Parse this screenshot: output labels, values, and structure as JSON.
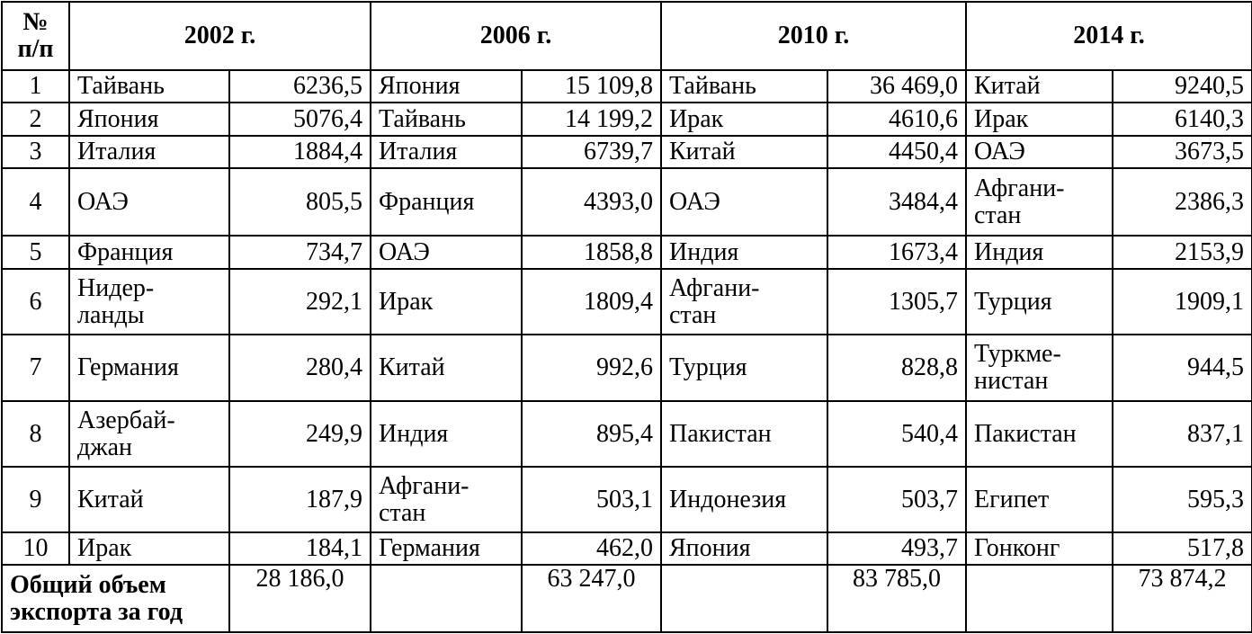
{
  "header": {
    "num": "№\nп/п",
    "years": [
      "2002 г.",
      "2006 г.",
      "2010 г.",
      "2014 г."
    ]
  },
  "rows": [
    {
      "num": "1",
      "cells": [
        [
          "Тайвань",
          "6236,5"
        ],
        [
          "Япония",
          "15 109,8"
        ],
        [
          "Тайвань",
          "36 469,0"
        ],
        [
          "Китай",
          "9240,5"
        ]
      ]
    },
    {
      "num": "2",
      "cells": [
        [
          "Япония",
          "5076,4"
        ],
        [
          "Тайвань",
          "14 199,2"
        ],
        [
          "Ирак",
          "4610,6"
        ],
        [
          "Ирак",
          "6140,3"
        ]
      ]
    },
    {
      "num": "3",
      "cells": [
        [
          "Италия",
          "1884,4"
        ],
        [
          "Италия",
          "6739,7"
        ],
        [
          "Китай",
          "4450,4"
        ],
        [
          "ОАЭ",
          "3673,5"
        ]
      ]
    },
    {
      "num": "4",
      "cells": [
        [
          "ОАЭ",
          "805,5"
        ],
        [
          "Франция",
          "4393,0"
        ],
        [
          "ОАЭ",
          "3484,4"
        ],
        [
          "Афгани-\nстан",
          "2386,3"
        ]
      ]
    },
    {
      "num": "5",
      "cells": [
        [
          "Франция",
          "734,7"
        ],
        [
          "ОАЭ",
          "1858,8"
        ],
        [
          "Индия",
          "1673,4"
        ],
        [
          "Индия",
          "2153,9"
        ]
      ]
    },
    {
      "num": "6",
      "cells": [
        [
          "Нидер-\nланды",
          "292,1"
        ],
        [
          "Ирак",
          "1809,4"
        ],
        [
          "Афгани-\nстан",
          "1305,7"
        ],
        [
          "Турция",
          "1909,1"
        ]
      ]
    },
    {
      "num": "7",
      "cells": [
        [
          "Германия",
          "280,4"
        ],
        [
          "Китай",
          "992,6"
        ],
        [
          "Турция",
          "828,8"
        ],
        [
          "Туркме-\nнистан",
          "944,5"
        ]
      ]
    },
    {
      "num": "8",
      "cells": [
        [
          "Азербай-\nджан",
          "249,9"
        ],
        [
          "Индия",
          "895,4"
        ],
        [
          "Пакистан",
          "540,4"
        ],
        [
          "Пакистан",
          "837,1"
        ]
      ]
    },
    {
      "num": "9",
      "cells": [
        [
          "Китай",
          "187,9"
        ],
        [
          "Афгани-\nстан",
          "503,1"
        ],
        [
          "Индонезия",
          "503,7"
        ],
        [
          "Египет",
          "595,3"
        ]
      ]
    },
    {
      "num": "10",
      "cells": [
        [
          "Ирак",
          "184,1"
        ],
        [
          "Германия",
          "462,0"
        ],
        [
          "Япония",
          "493,7"
        ],
        [
          "Гонконг",
          "517,8"
        ]
      ]
    }
  ],
  "total": {
    "label": "Общий объем\nэкспорта за год",
    "values": [
      "28 186,0",
      "63 247,0",
      "83 785,0",
      "73 874,2"
    ]
  }
}
